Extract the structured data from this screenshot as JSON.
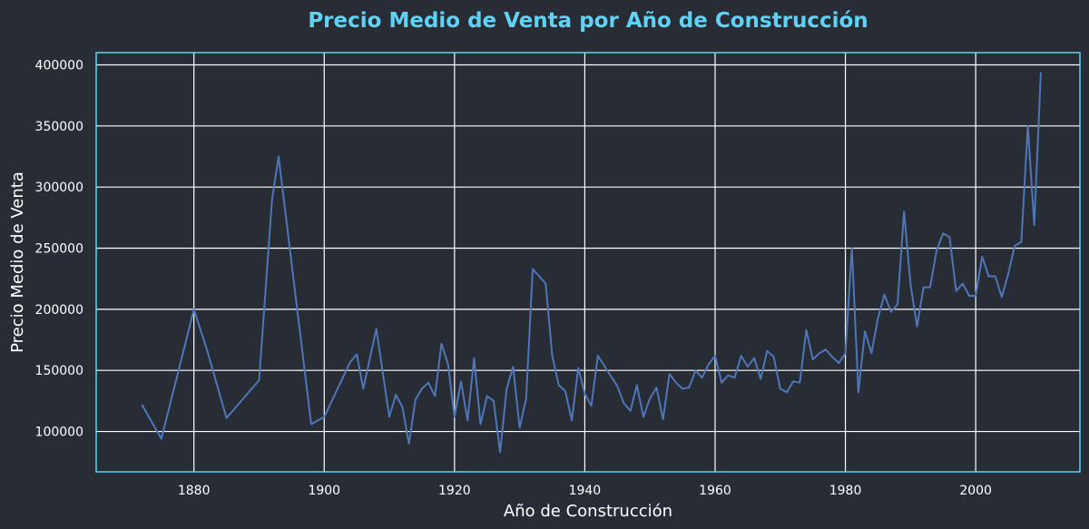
{
  "chart_data": {
    "type": "line",
    "title": "Precio Medio de Venta por Año de Construcción",
    "xlabel": "Año de Construcción",
    "ylabel": "Precio Medio de Venta",
    "xlim": [
      1865,
      2016
    ],
    "ylim": [
      67000,
      410000
    ],
    "xticks": [
      1880,
      1900,
      1920,
      1940,
      1960,
      1980,
      2000
    ],
    "yticks": [
      100000,
      150000,
      200000,
      250000,
      300000,
      350000,
      400000
    ],
    "grid": true,
    "colors": {
      "background": "#272c35",
      "title": "#5fd3f5",
      "frame": "#5fd3f5",
      "grid": "#ffffff",
      "line": "#4f76b8",
      "text": "#ffffff"
    },
    "series": [
      {
        "x": [
          1872,
          1875,
          1880,
          1882,
          1885,
          1890,
          1892,
          1893,
          1898,
          1900,
          1904,
          1905,
          1906,
          1908,
          1910,
          1911,
          1912,
          1913,
          1914,
          1915,
          1916,
          1917,
          1918,
          1919,
          1920,
          1921,
          1922,
          1923,
          1924,
          1925,
          1926,
          1927,
          1928,
          1929,
          1930,
          1931,
          1932,
          1934,
          1935,
          1936,
          1937,
          1938,
          1939,
          1940,
          1941,
          1942,
          1945,
          1946,
          1947,
          1948,
          1949,
          1950,
          1951,
          1952,
          1953,
          1954,
          1955,
          1956,
          1957,
          1958,
          1959,
          1960,
          1961,
          1962,
          1963,
          1964,
          1965,
          1966,
          1967,
          1968,
          1969,
          1970,
          1971,
          1972,
          1973,
          1974,
          1975,
          1976,
          1977,
          1978,
          1979,
          1980,
          1981,
          1982,
          1983,
          1984,
          1985,
          1986,
          1987,
          1988,
          1989,
          1990,
          1991,
          1992,
          1993,
          1994,
          1995,
          1996,
          1997,
          1998,
          1999,
          2000,
          2001,
          2002,
          2003,
          2004,
          2005,
          2006,
          2007,
          2008,
          2009,
          2010
        ],
        "y": [
          122000,
          94000,
          200000,
          167000,
          111000,
          142000,
          290000,
          325000,
          106000,
          112000,
          157000,
          163000,
          135000,
          184000,
          112000,
          130000,
          120000,
          90000,
          126000,
          135000,
          140000,
          129000,
          172000,
          155000,
          112000,
          141000,
          109000,
          160000,
          106000,
          129000,
          125000,
          83000,
          135000,
          153000,
          103000,
          127000,
          233000,
          221000,
          162000,
          138000,
          133000,
          109000,
          152000,
          131000,
          121000,
          162000,
          137000,
          123000,
          117000,
          138000,
          112000,
          127000,
          136000,
          110000,
          147000,
          140000,
          135000,
          136000,
          150000,
          144000,
          155000,
          162000,
          140000,
          146000,
          144000,
          162000,
          153000,
          160000,
          143000,
          166000,
          161000,
          135000,
          132000,
          141000,
          140000,
          183000,
          159000,
          164000,
          167000,
          161000,
          156000,
          164000,
          250000,
          132000,
          182000,
          164000,
          193000,
          212000,
          198000,
          204000,
          280000,
          220000,
          186000,
          218000,
          218000,
          248000,
          262000,
          259000,
          215000,
          221000,
          211000,
          211000,
          243000,
          227000,
          227000,
          210000,
          229000,
          252000,
          255000,
          350000,
          269000,
          394000
        ]
      }
    ]
  }
}
